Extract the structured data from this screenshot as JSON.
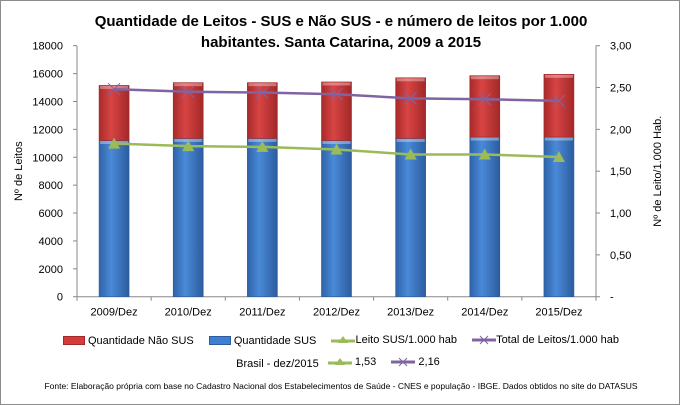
{
  "chart_data": {
    "type": "bar",
    "title": "Quantidade de Leitos - SUS e Não SUS - e número de leitos por 1.000 habitantes. Santa Catarina, 2009 a 2015",
    "title_lines": [
      "Quantidade de Leitos - SUS e Não SUS - e número de leitos por 1.000",
      "habitantes. Santa Catarina, 2009 a 2015"
    ],
    "categories": [
      "2009/Dez",
      "2010/Dez",
      "2011/Dez",
      "2012/Dez",
      "2013/Dez",
      "2014/Dez",
      "2015/Dez"
    ],
    "ylabel": "Nº de Leitos",
    "y2label": "Nº de Leito/1.000 Hab.",
    "ylim": [
      0,
      18000
    ],
    "y2lim": [
      0,
      3
    ],
    "yticks": [
      "0",
      "2000",
      "4000",
      "6000",
      "8000",
      "10000",
      "12000",
      "14000",
      "16000",
      "18000"
    ],
    "y2ticks": [
      "-",
      "0,50",
      "1,00",
      "1,50",
      "2,00",
      "2,50",
      "3,00"
    ],
    "stacked": true,
    "series": [
      {
        "name": "Quantidade SUS",
        "kind": "bar",
        "axis": "left",
        "color": "#3f7fd0",
        "values": [
          11200,
          11350,
          11350,
          11200,
          11350,
          11450,
          11450
        ]
      },
      {
        "name": "Quantidade Não SUS",
        "kind": "bar",
        "axis": "left",
        "color": "#d43c3c",
        "values": [
          3950,
          4000,
          4000,
          4200,
          4350,
          4400,
          4500
        ]
      },
      {
        "name": "Leito SUS/1.000 hab",
        "kind": "line",
        "marker": "triangle",
        "axis": "right",
        "color": "#9bbb59",
        "values": [
          1.83,
          1.8,
          1.79,
          1.76,
          1.7,
          1.7,
          1.67
        ]
      },
      {
        "name": "Total de Leitos/1.000 hab",
        "kind": "line",
        "marker": "x",
        "axis": "right",
        "color": "#8064a2",
        "values": [
          2.48,
          2.45,
          2.44,
          2.42,
          2.37,
          2.36,
          2.34
        ]
      }
    ],
    "legend_order": [
      "Quantidade Não SUS",
      "Quantidade SUS",
      "Leito SUS/1.000 hab",
      "Total de Leitos/1.000 hab"
    ],
    "legend_placement": "bottom",
    "grid": false,
    "brasil": {
      "label": "Brasil -  dez/2015",
      "leito_sus": "1,53",
      "total": "2,16"
    },
    "source": "Fonte: Elaboração própria com base no  Cadastro Nacional dos Estabelecimentos de Saúde - CNES e população - IBGE. Dados obtidos no site do DATASUS"
  }
}
